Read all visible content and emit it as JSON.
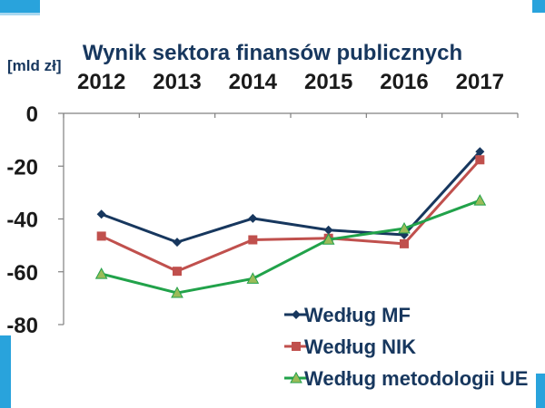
{
  "colors": {
    "accent_blue": "#29a3dc",
    "accent_light": "#a9d8f0",
    "title": "#17375e",
    "axis": "#808080"
  },
  "chart_data": {
    "type": "line",
    "title": "Wynik sektora finansów publicznych",
    "unit_label": "[mld zł]",
    "categories": [
      "2012",
      "2013",
      "2014",
      "2015",
      "2016",
      "2017"
    ],
    "x_axis_position": "top",
    "ylim": [
      -80,
      0
    ],
    "yticks": [
      "0",
      "-20",
      "-40",
      "-60",
      "-80"
    ],
    "ytick_values": [
      0,
      -20,
      -40,
      -60,
      -80
    ],
    "grid": false,
    "legend_position": "bottom-right",
    "series": [
      {
        "name": "Według MF",
        "values": [
          -38.2,
          -48.8,
          -39.8,
          -44.2,
          -46.0,
          -14.5
        ],
        "color": "#17375e",
        "marker": "diamond"
      },
      {
        "name": "Według NIK",
        "values": [
          -46.5,
          -59.8,
          -47.9,
          -47.3,
          -49.4,
          -17.6
        ],
        "color": "#c0504d",
        "marker": "square"
      },
      {
        "name": "Według metodologii UE",
        "values": [
          -60.8,
          -68.0,
          -62.6,
          -47.8,
          -43.6,
          -33.0
        ],
        "color": "#21a24a",
        "marker_fill": "#9bbb59",
        "marker": "triangle"
      }
    ]
  }
}
